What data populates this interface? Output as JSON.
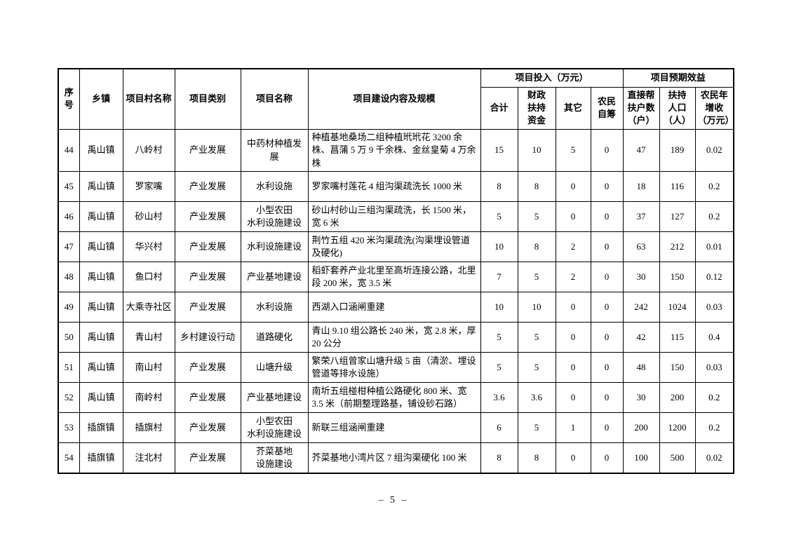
{
  "page": {
    "footer": "– 5 –"
  },
  "table": {
    "header": {
      "seq": "序\n号",
      "town": "乡镇",
      "village": "项目村名称",
      "category": "项目类别",
      "project_name": "项目名称",
      "content": "项目建设内容及规模",
      "investment_group": "项目投入（万元）",
      "benefit_group": "项目预期效益",
      "total": "合计",
      "fiscal": "财政\n扶持\n资金",
      "other": "其它",
      "self": "农民\n自筹",
      "households": "直接帮\n扶户数\n（户）",
      "population": "扶持\n人口\n（人）",
      "income": "农民年\n增收\n（万元）"
    },
    "rows": [
      {
        "seq": "44",
        "town": "禹山镇",
        "village": "八岭村",
        "category": "产业发展",
        "name": "中药材种植发展",
        "content": "种植基地桑场二组种植玳玳花 3200 余株、菖蒲 5 万 9 千余株、金丝皇菊 4 万余株",
        "total": "15",
        "fiscal": "10",
        "other": "5",
        "self": "0",
        "households": "47",
        "population": "189",
        "income": "0.02"
      },
      {
        "seq": "45",
        "town": "禹山镇",
        "village": "罗家嘴",
        "category": "产业发展",
        "name": "水利设施",
        "content": "罗家嘴村莲花 4 组沟渠疏洗长 1000 米",
        "total": "8",
        "fiscal": "8",
        "other": "0",
        "self": "0",
        "households": "18",
        "population": "116",
        "income": "0.2"
      },
      {
        "seq": "46",
        "town": "禹山镇",
        "village": "砂山村",
        "category": "产业发展",
        "name": "小型农田\n水利设施建设",
        "content": "砂山村砂山三组沟渠疏洗，长 1500 米，宽 6 米",
        "total": "5",
        "fiscal": "5",
        "other": "0",
        "self": "0",
        "households": "37",
        "population": "127",
        "income": "0.2"
      },
      {
        "seq": "47",
        "town": "禹山镇",
        "village": "华兴村",
        "category": "产业发展",
        "name": "水利设施建设",
        "content": "荆竹五组 420 米沟渠疏洗(沟渠埋设管道及硬化)",
        "total": "10",
        "fiscal": "8",
        "other": "2",
        "self": "0",
        "households": "63",
        "population": "212",
        "income": "0.01"
      },
      {
        "seq": "48",
        "town": "禹山镇",
        "village": "鱼口村",
        "category": "产业发展",
        "name": "产业基地建设",
        "content": "稻虾套养产业北里至高圻连接公路，北里段 200 米，宽 3.5 米",
        "total": "7",
        "fiscal": "5",
        "other": "2",
        "self": "0",
        "households": "30",
        "population": "150",
        "income": "0.12"
      },
      {
        "seq": "49",
        "town": "禹山镇",
        "village": "大乘寺社区",
        "category": "产业发展",
        "name": "水利设施",
        "content": "西湖入口涵闸重建",
        "total": "10",
        "fiscal": "10",
        "other": "0",
        "self": "0",
        "households": "242",
        "population": "1024",
        "income": "0.03"
      },
      {
        "seq": "50",
        "town": "禹山镇",
        "village": "青山村",
        "category": "乡村建设行动",
        "name": "道路硬化",
        "content": "青山 9.10 组公路长 240 米，宽 2.8 米，厚 20 公分",
        "total": "5",
        "fiscal": "5",
        "other": "0",
        "self": "0",
        "households": "42",
        "population": "115",
        "income": "0.4"
      },
      {
        "seq": "51",
        "town": "禹山镇",
        "village": "南山村",
        "category": "产业发展",
        "name": "山塘升级",
        "content": "繁荣八组曾家山塘升级 5 亩（清淤、埋设管道等排水设施）",
        "total": "5",
        "fiscal": "5",
        "other": "0",
        "self": "0",
        "households": "48",
        "population": "150",
        "income": "0.03"
      },
      {
        "seq": "52",
        "town": "禹山镇",
        "village": "南岭村",
        "category": "产业发展",
        "name": "产业基地建设",
        "content": "南圻五组椪柑种植公路硬化 800 米、宽 3.5 米（前期整理路基，铺设砂石路）",
        "total": "3.6",
        "fiscal": "3.6",
        "other": "0",
        "self": "0",
        "households": "30",
        "population": "200",
        "income": "0.2"
      },
      {
        "seq": "53",
        "town": "插旗镇",
        "village": "插旗村",
        "category": "产业发展",
        "name": "小型农田\n水利设施建设",
        "content": "新联三组涵闸重建",
        "total": "6",
        "fiscal": "5",
        "other": "1",
        "self": "0",
        "households": "200",
        "population": "1200",
        "income": "0.2"
      },
      {
        "seq": "54",
        "town": "插旗镇",
        "village": "注北村",
        "category": "产业发展",
        "name": "芥菜基地\n设施建设",
        "content": "芥菜基地小湾片区 7 组沟渠硬化 100 米",
        "total": "8",
        "fiscal": "8",
        "other": "0",
        "self": "0",
        "households": "100",
        "population": "500",
        "income": "0.02"
      }
    ]
  }
}
